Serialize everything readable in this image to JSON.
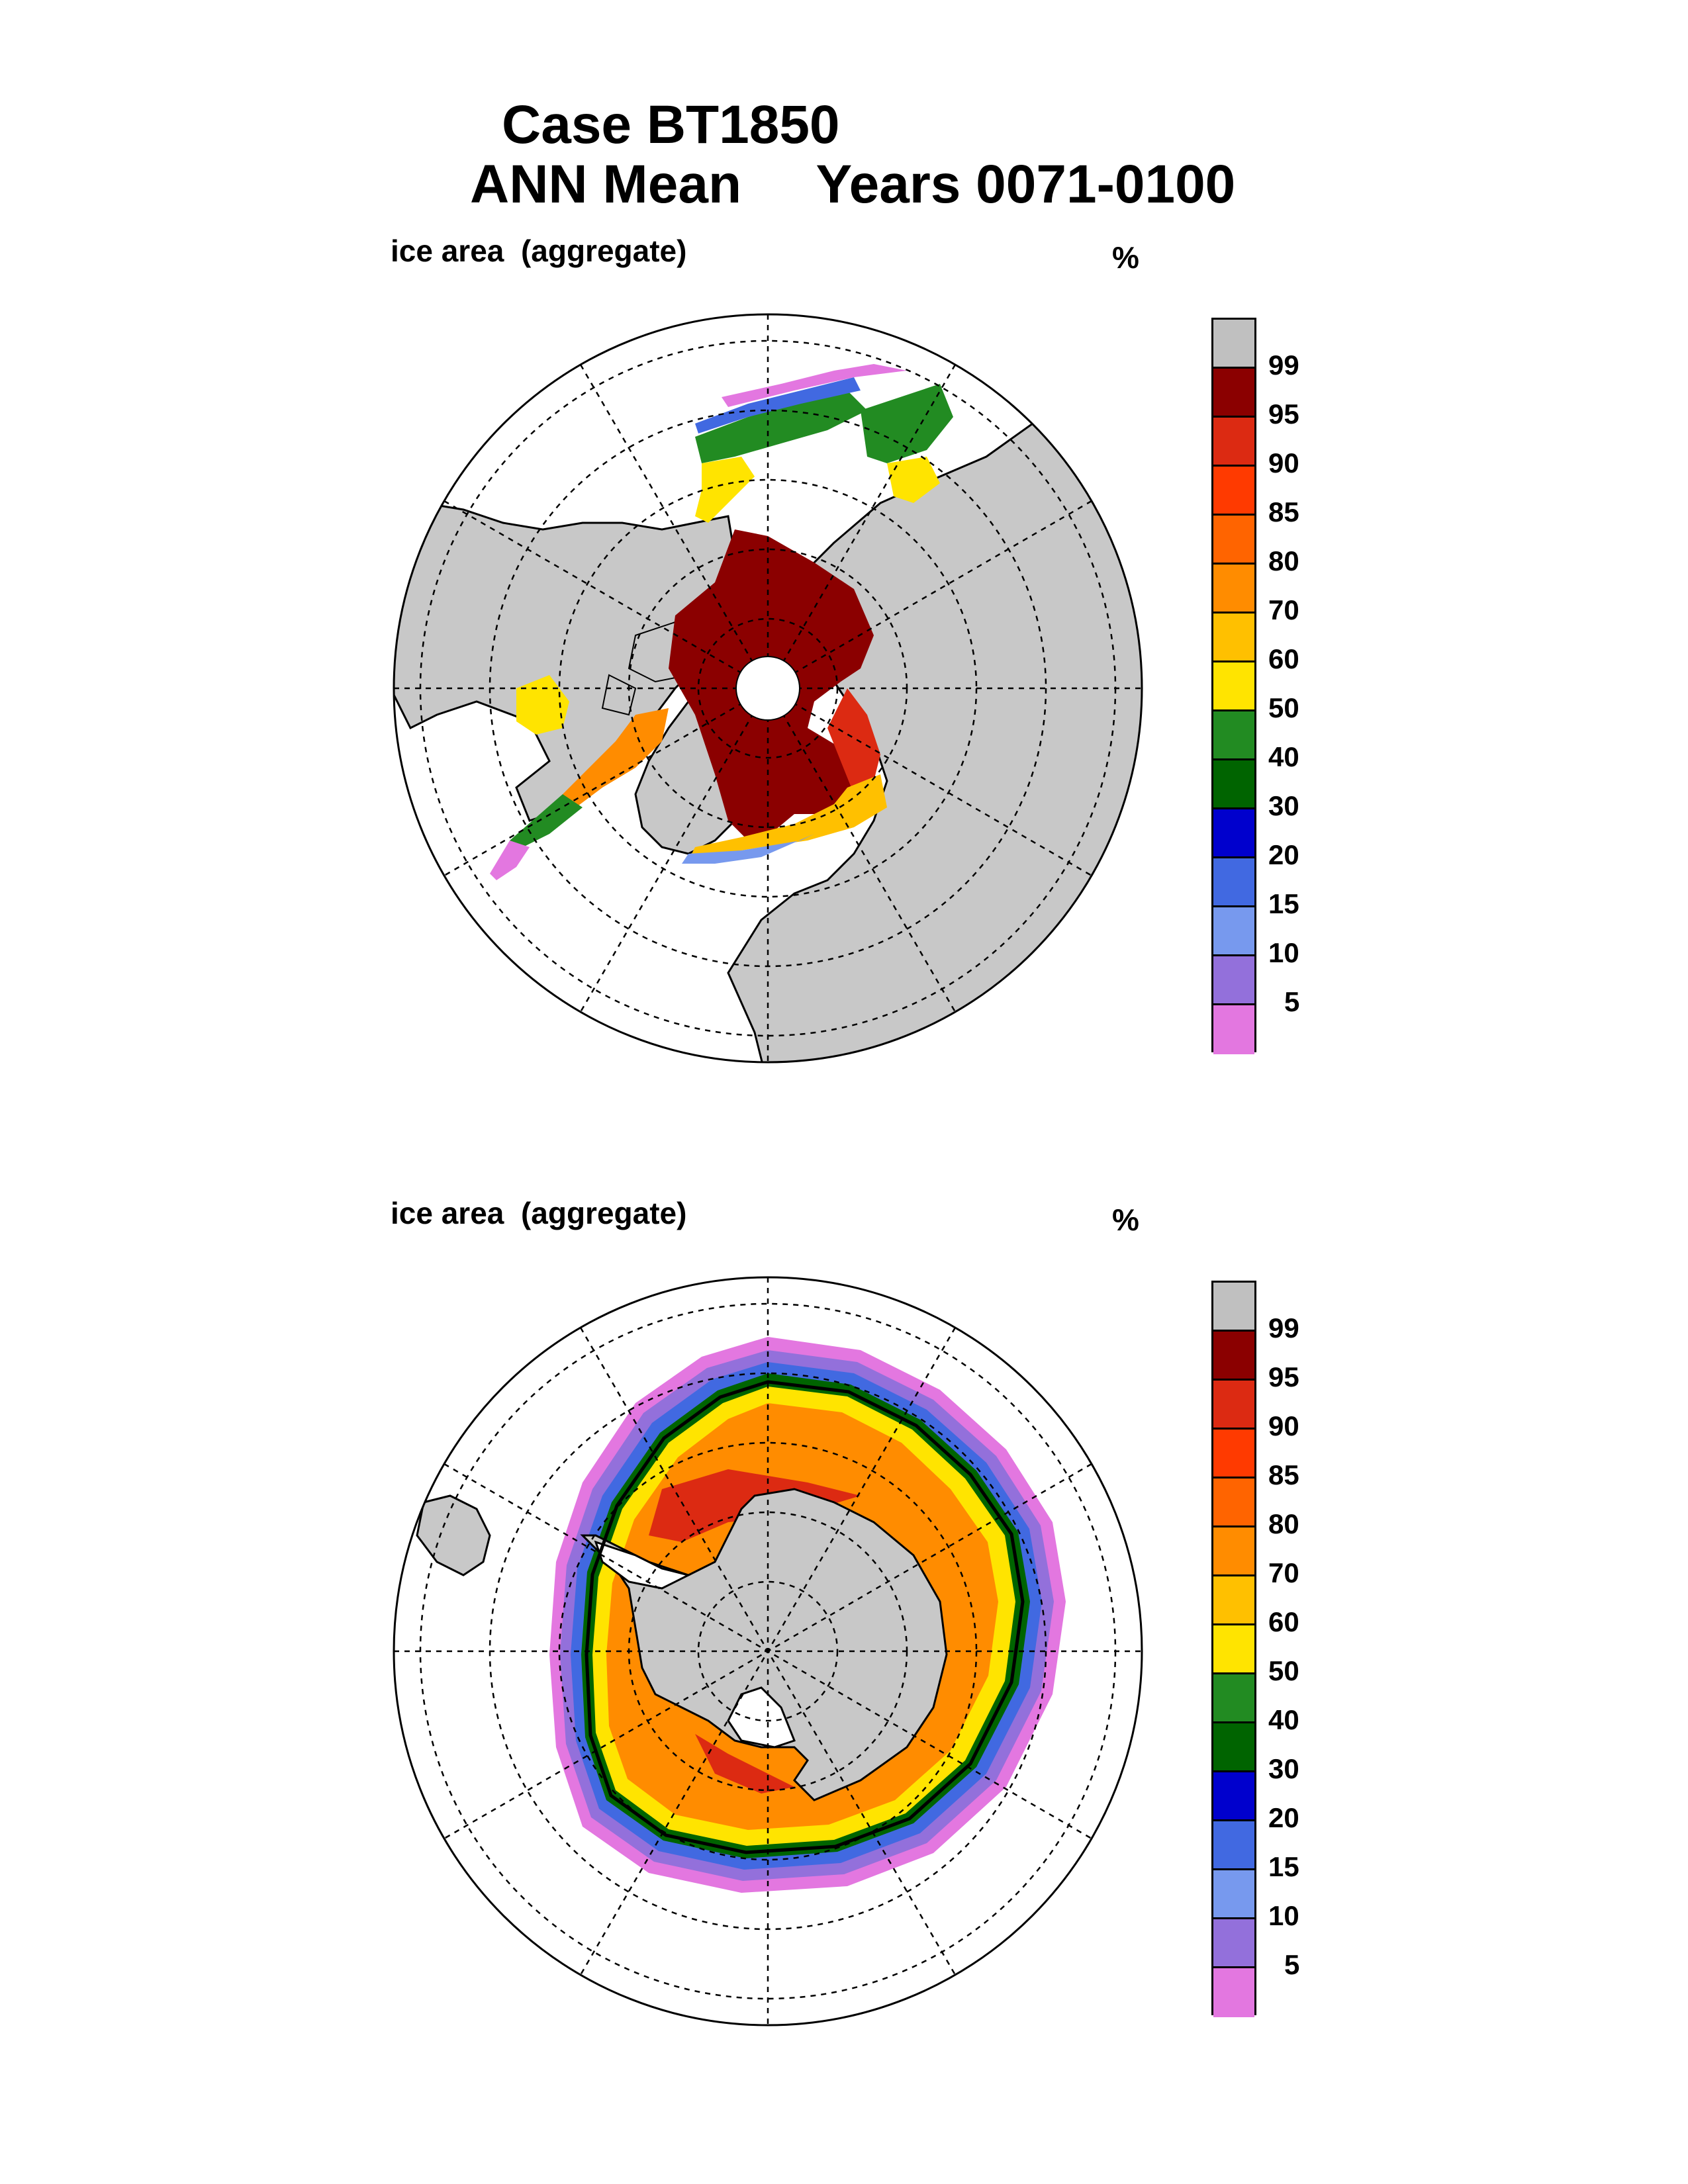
{
  "title": {
    "line1": "Case BT1850",
    "line2": "ANN Mean     Years 0071-0100"
  },
  "panels": [
    {
      "id": "north",
      "variable_label": "ice area  (aggregate)",
      "unit": "%"
    },
    {
      "id": "south",
      "variable_label": "ice area  (aggregate)",
      "unit": "%"
    }
  ],
  "colorbar": {
    "labels": [
      "99",
      "95",
      "90",
      "85",
      "80",
      "70",
      "60",
      "50",
      "40",
      "30",
      "20",
      "15",
      "10",
      "5"
    ],
    "colors": [
      "#c0c0c0",
      "#8b0000",
      "#dc2a12",
      "#ff3a00",
      "#ff6400",
      "#ff8c00",
      "#ffc000",
      "#ffe400",
      "#228b22",
      "#006400",
      "#0000cd",
      "#4169e1",
      "#7799ee",
      "#9370db",
      "#e377e0"
    ]
  },
  "colors": {
    "land": "#c8c8c8",
    "ocean": "#ffffff",
    "grid": "#000000"
  }
}
